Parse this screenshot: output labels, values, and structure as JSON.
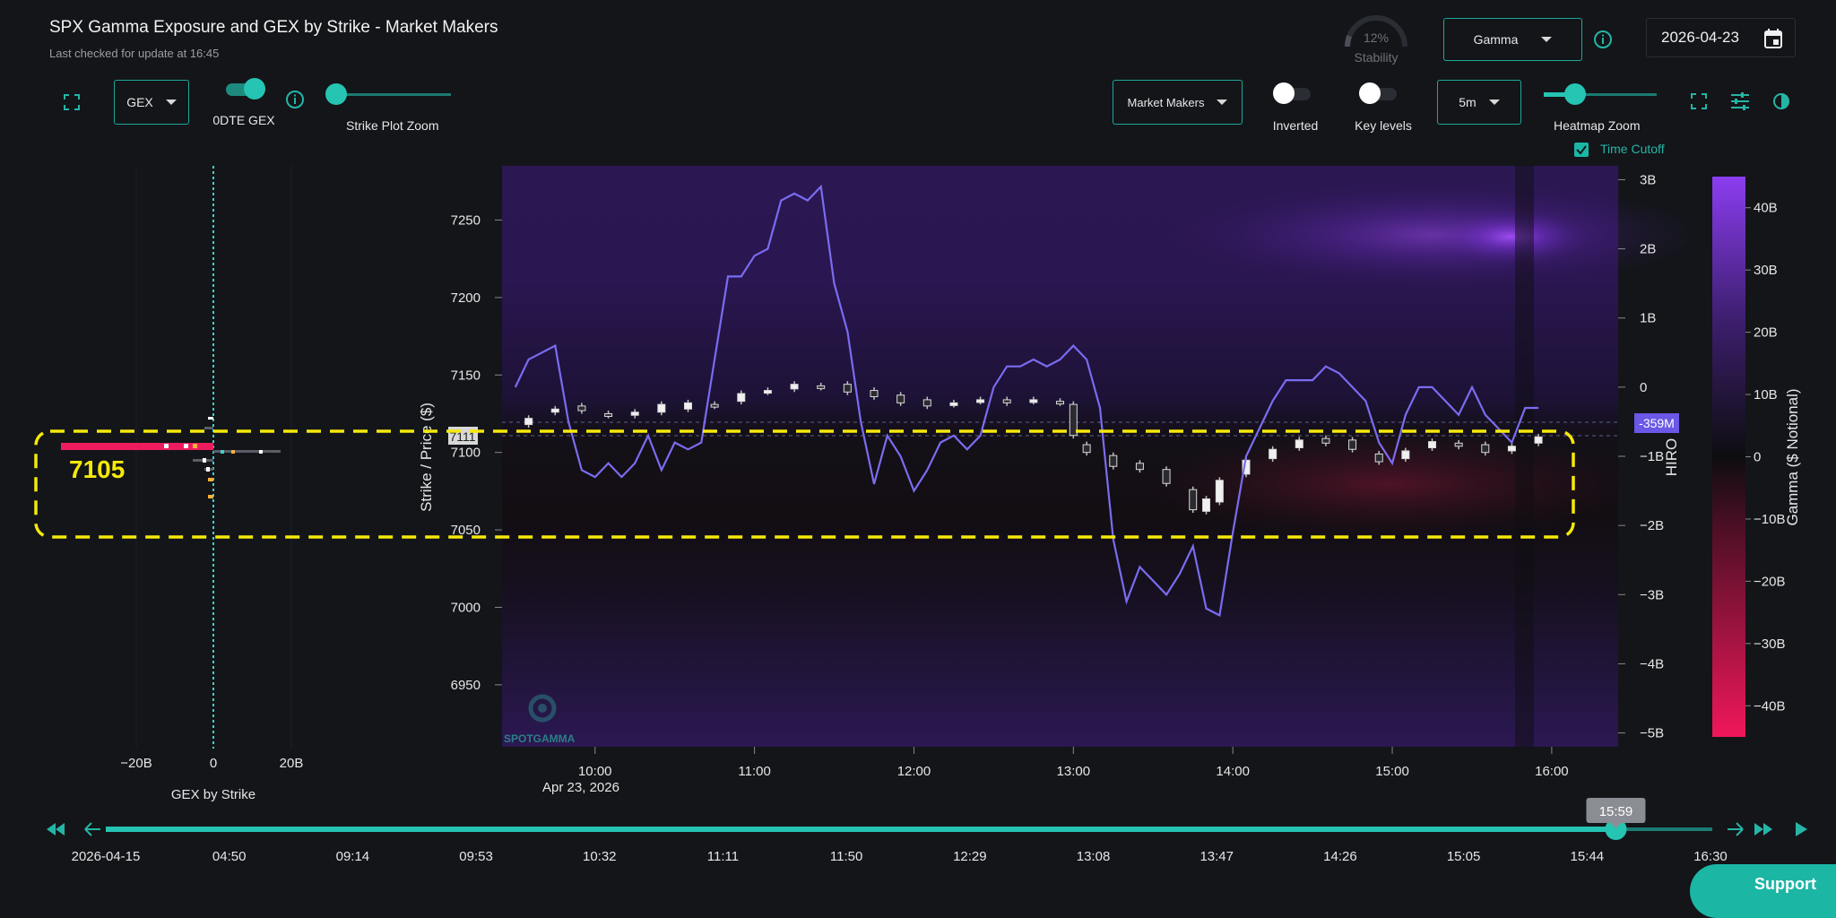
{
  "header": {
    "title": "SPX Gamma Exposure and GEX by Strike - Market Makers",
    "subtitle": "Last checked for update at 16:45"
  },
  "stability": {
    "percent": "12%",
    "label": "Stability",
    "value": 0.12
  },
  "controls": {
    "mode_select": "Gamma",
    "date": "2026-04-23",
    "gex_select": "GEX",
    "dte_toggle_label": "0DTE GEX",
    "dte_toggle_on": true,
    "strike_zoom_label": "Strike Plot Zoom",
    "strike_zoom_value": 0.0,
    "participant_select": "Market Makers",
    "inverted_label": "Inverted",
    "inverted_on": false,
    "key_levels_label": "Key levels",
    "key_levels_on": false,
    "interval_select": "5m",
    "heatmap_zoom_label": "Heatmap Zoom",
    "heatmap_zoom_value": 0.23,
    "time_cutoff_label": "Time Cutoff",
    "time_cutoff_checked": true
  },
  "gex_panel": {
    "x_ticks": [
      "−20B",
      "0",
      "20B"
    ],
    "xlabel": "GEX by Strike",
    "highlight_strike": "7105"
  },
  "main_chart": {
    "ylabel": "Strike / Price ($)",
    "y_ticks": [
      "7250",
      "7200",
      "7150",
      "7100",
      "7050",
      "7000",
      "6950"
    ],
    "x_ticks": [
      "10:00",
      "11:00",
      "12:00",
      "13:00",
      "14:00",
      "15:00",
      "16:00"
    ],
    "x_sub": "Apr 23, 2026",
    "price_marker": "7111",
    "hiro_label": "HIRO",
    "hiro_ticks": [
      "3B",
      "2B",
      "1B",
      "0",
      "−1B",
      "−2B",
      "−3B",
      "−4B",
      "−5B"
    ],
    "hiro_marker": "-359M",
    "watermark": "SPOTGAMMA"
  },
  "colorbar": {
    "label": "Gamma ($ Notional)",
    "ticks": [
      "40B",
      "30B",
      "20B",
      "10B",
      "0",
      "−10B",
      "−20B",
      "−30B",
      "−40B"
    ],
    "color_top": "#8b3df0",
    "color_mid": "#0d0d10",
    "color_bottom": "#f0175a"
  },
  "timeline": {
    "labels": [
      "2026-04-15",
      "04:50",
      "09:14",
      "09:53",
      "10:32",
      "11:11",
      "11:50",
      "12:29",
      "13:08",
      "13:47",
      "14:26",
      "15:05",
      "15:44",
      "16:30"
    ],
    "current": "15:59",
    "position": 0.94
  },
  "support_label": "Support",
  "chart_data": {
    "type": "line",
    "title": "SPX Gamma Exposure and GEX by Strike - Market Makers",
    "xlabel": "",
    "ylabel": "Strike / Price ($)",
    "ylim": [
      6910,
      7285
    ],
    "hiro_ylim": [
      -5.2,
      3.2
    ],
    "hiro_series": {
      "name": "HIRO",
      "x": [
        "09:30",
        "09:35",
        "09:40",
        "09:45",
        "09:50",
        "09:55",
        "10:00",
        "10:05",
        "10:10",
        "10:15",
        "10:20",
        "10:25",
        "10:30",
        "10:35",
        "10:40",
        "10:45",
        "10:50",
        "10:55",
        "11:00",
        "11:05",
        "11:10",
        "11:15",
        "11:20",
        "11:25",
        "11:30",
        "11:35",
        "11:40",
        "11:45",
        "11:50",
        "11:55",
        "12:00",
        "12:05",
        "12:10",
        "12:15",
        "12:20",
        "12:25",
        "12:30",
        "12:35",
        "12:40",
        "12:45",
        "12:50",
        "12:55",
        "13:00",
        "13:05",
        "13:10",
        "13:15",
        "13:20",
        "13:25",
        "13:30",
        "13:35",
        "13:40",
        "13:45",
        "13:50",
        "13:55",
        "14:00",
        "14:05",
        "14:10",
        "14:15",
        "14:20",
        "14:25",
        "14:30",
        "14:35",
        "14:40",
        "14:45",
        "14:50",
        "14:55",
        "15:00",
        "15:05",
        "15:10",
        "15:15",
        "15:20",
        "15:25",
        "15:30",
        "15:35",
        "15:40",
        "15:45",
        "15:50",
        "15:55"
      ],
      "values": [
        0,
        0.4,
        0.5,
        0.6,
        -0.5,
        -1.2,
        -1.3,
        -1.1,
        -1.3,
        -1.1,
        -0.7,
        -1.2,
        -0.8,
        -0.9,
        -0.8,
        0.4,
        1.6,
        1.6,
        1.9,
        2.0,
        2.7,
        2.8,
        2.7,
        2.9,
        1.5,
        0.8,
        -0.5,
        -1.4,
        -0.7,
        -1.0,
        -1.5,
        -1.2,
        -0.8,
        -0.7,
        -0.9,
        -0.7,
        0.0,
        0.3,
        0.3,
        0.4,
        0.3,
        0.4,
        0.6,
        0.4,
        -0.3,
        -2.2,
        -3.1,
        -2.6,
        -2.8,
        -3.0,
        -2.7,
        -2.3,
        -3.2,
        -3.3,
        -2.1,
        -1.0,
        -0.6,
        -0.2,
        0.1,
        0.1,
        0.1,
        0.3,
        0.2,
        0.0,
        -0.2,
        -0.8,
        -1.1,
        -0.4,
        0.0,
        0.0,
        -0.2,
        -0.4,
        0.0,
        -0.4,
        -0.6,
        -0.8,
        -0.3,
        -0.3
      ]
    },
    "price_series": {
      "name": "SPX",
      "x": [
        "09:35",
        "09:45",
        "09:55",
        "10:05",
        "10:15",
        "10:25",
        "10:35",
        "10:45",
        "10:55",
        "11:05",
        "11:15",
        "11:25",
        "11:35",
        "11:45",
        "11:55",
        "12:05",
        "12:15",
        "12:25",
        "12:35",
        "12:45",
        "12:55",
        "13:00",
        "13:05",
        "13:15",
        "13:25",
        "13:35",
        "13:45",
        "13:50",
        "13:55",
        "14:05",
        "14:15",
        "14:25",
        "14:35",
        "14:45",
        "14:55",
        "15:05",
        "15:15",
        "15:25",
        "15:35",
        "15:45",
        "15:55"
      ],
      "open": [
        7118,
        7126,
        7130,
        7125,
        7124,
        7126,
        7128,
        7131,
        7133,
        7139,
        7141,
        7143,
        7144,
        7140,
        7137,
        7134,
        7131,
        7133,
        7134,
        7133,
        7133,
        7131,
        7105,
        7098,
        7093,
        7089,
        7076,
        7062,
        7068,
        7086,
        7096,
        7103,
        7109,
        7108,
        7099,
        7096,
        7103,
        7106,
        7105,
        7101,
        7106
      ],
      "close": [
        7122,
        7128,
        7127,
        7124,
        7126,
        7131,
        7132,
        7130,
        7138,
        7140,
        7144,
        7142,
        7139,
        7136,
        7132,
        7130,
        7132,
        7134,
        7132,
        7134,
        7132,
        7111,
        7100,
        7091,
        7089,
        7080,
        7063,
        7070,
        7082,
        7095,
        7102,
        7108,
        7106,
        7102,
        7094,
        7101,
        7107,
        7104,
        7100,
        7104,
        7110
      ]
    }
  }
}
